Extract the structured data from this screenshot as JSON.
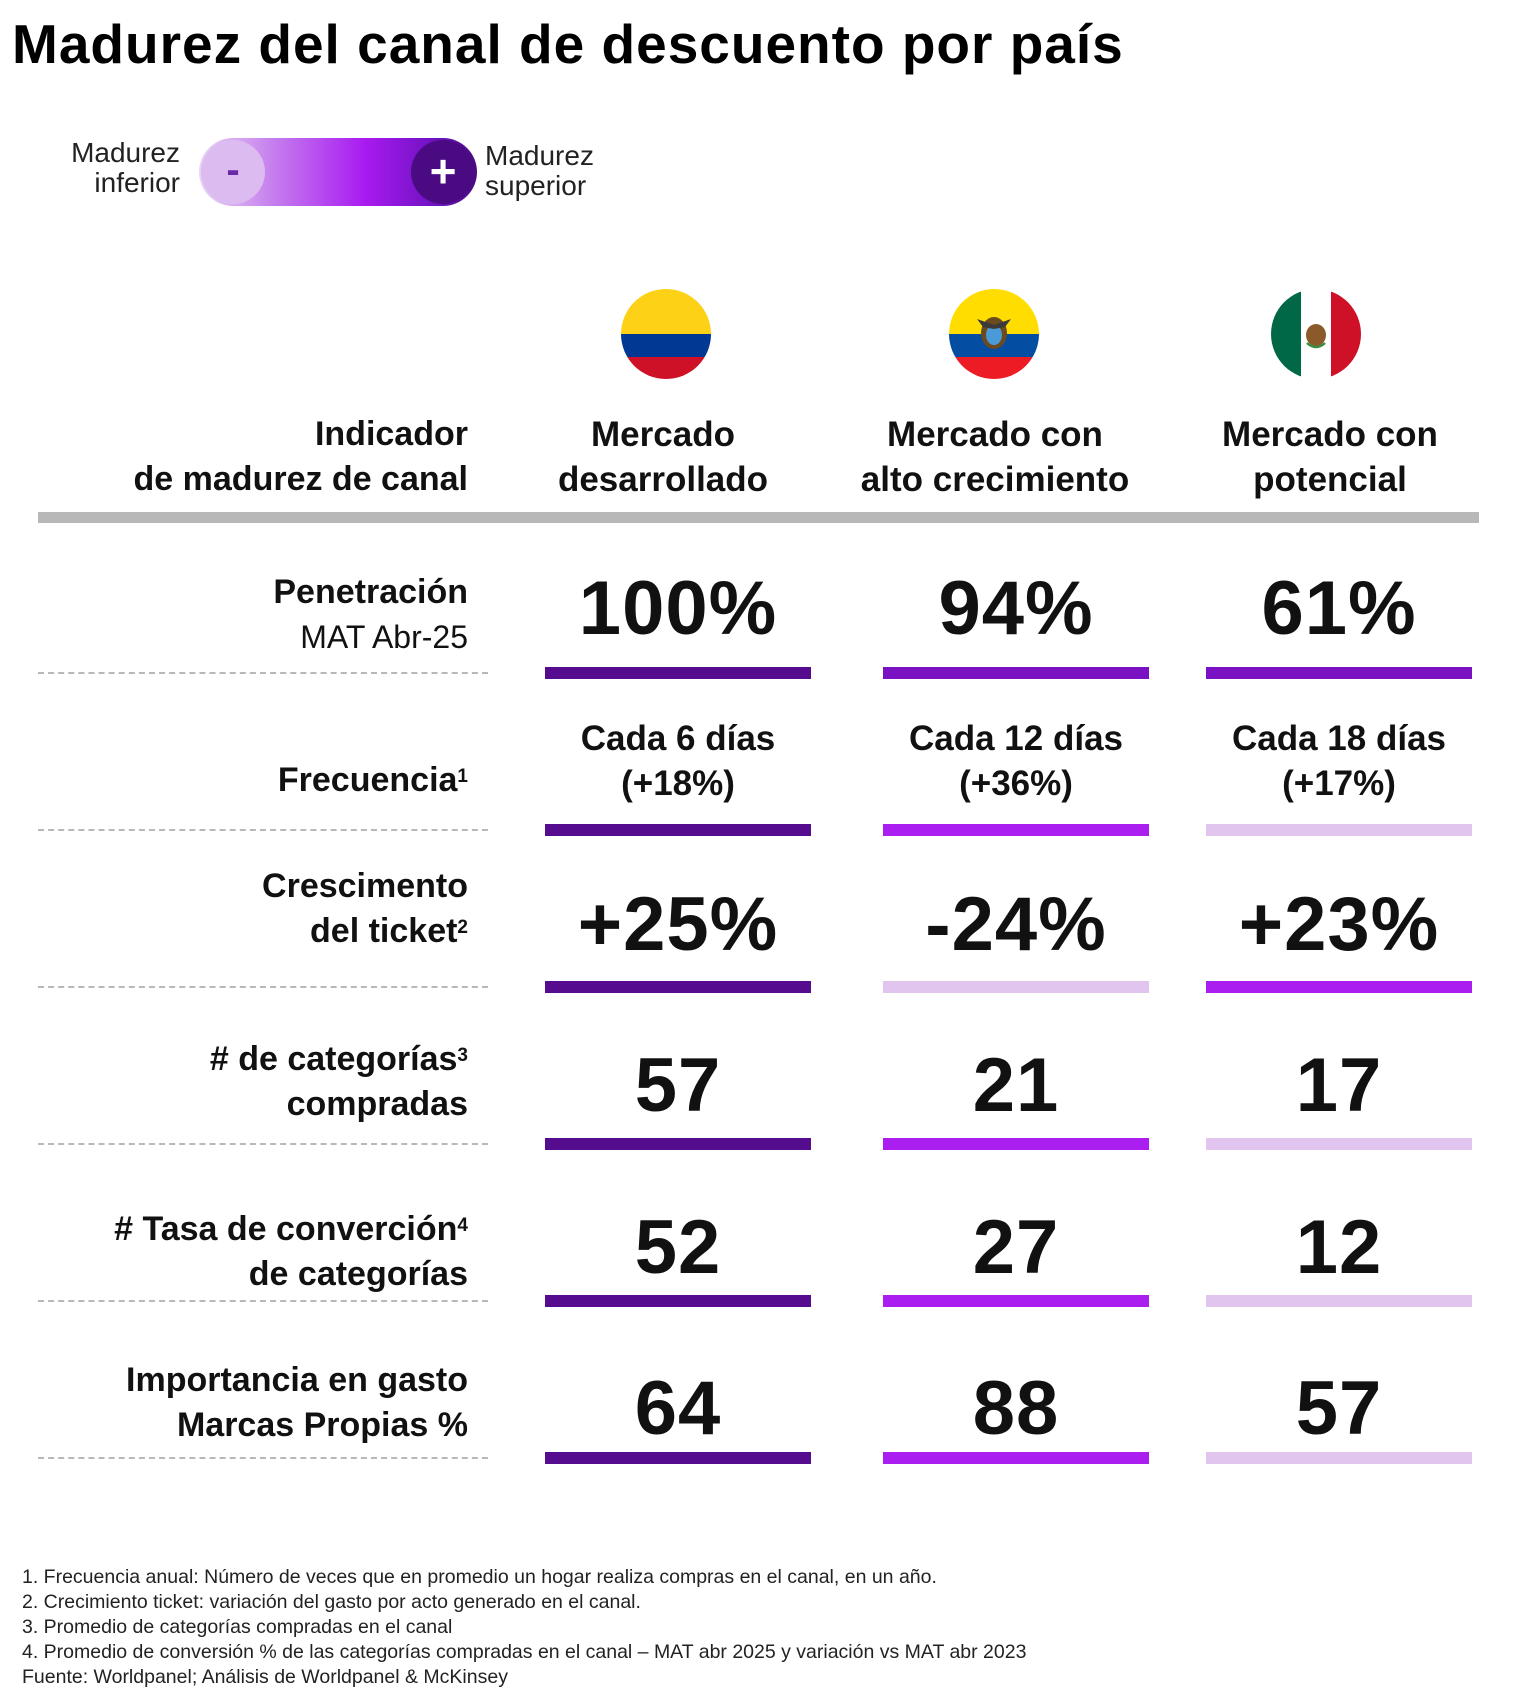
{
  "title": "Madurez del canal de descuento por país",
  "legend": {
    "low_line1": "Madurez",
    "low_line2": "inferior",
    "high_line1": "Madurez",
    "high_line2": "superior",
    "minus_symbol": "-",
    "plus_symbol": "+"
  },
  "colors": {
    "level_high": "#560c8e",
    "level_mid_high": "#7a12c4",
    "level_mid": "#aa1ff0",
    "level_low": "#e2c5ee",
    "header_rule": "#b8b8b8"
  },
  "columns": [
    {
      "line1": "Mercado",
      "line2": "desarrollado",
      "flag": "colombia-flag-icon"
    },
    {
      "line1": "Mercado con",
      "line2": "alto crecimiento",
      "flag": "ecuador-flag-icon"
    },
    {
      "line1": "Mercado con",
      "line2": "potencial",
      "flag": "mexico-flag-icon"
    }
  ],
  "header": {
    "line1": "Indicador",
    "line2": "de madurez de canal"
  },
  "rows": {
    "penetracion": {
      "label_line1": "Penetración",
      "label_sub": "MAT Abr-25",
      "values": [
        "100%",
        "94%",
        "61%"
      ],
      "levels": [
        "level_high",
        "level_mid_high",
        "level_mid_high"
      ]
    },
    "frecuencia": {
      "label_line1": "Frecuencia",
      "label_sup": "1",
      "values_line1": [
        "Cada 6 días",
        "Cada 12 días",
        "Cada 18 días"
      ],
      "values_line2": [
        "(+18%)",
        "(+36%)",
        "(+17%)"
      ],
      "levels": [
        "level_high",
        "level_mid",
        "level_low"
      ]
    },
    "ticket": {
      "label_line1": "Crescimento",
      "label_line2": "del ticket",
      "label_sup": "2",
      "values": [
        "+25%",
        "-24%",
        "+23%"
      ],
      "levels": [
        "level_high",
        "level_low",
        "level_mid"
      ]
    },
    "categorias": {
      "label_line1": "# de categorías",
      "label_sup": "3",
      "label_line2": "compradas",
      "values": [
        "57",
        "21",
        "17"
      ],
      "levels": [
        "level_high",
        "level_mid",
        "level_low"
      ]
    },
    "conversion": {
      "label_line1": "# Tasa de converción",
      "label_sup": "4",
      "label_line2": "de categorías",
      "values": [
        "52",
        "27",
        "12"
      ],
      "levels": [
        "level_high",
        "level_mid",
        "level_low"
      ]
    },
    "marcas": {
      "label_line1": "Importancia en gasto",
      "label_line2": "Marcas Propias %",
      "values": [
        "64",
        "88",
        "57"
      ],
      "levels": [
        "level_high",
        "level_mid",
        "level_low"
      ]
    }
  },
  "footnotes": [
    "1. Frecuencia anual: Número de veces que en promedio un hogar realiza compras en el canal, en un año.",
    "2. Crecimiento ticket: variación del gasto por acto generado en el canal.",
    "3. Promedio de categorías compradas en el canal",
    "4. Promedio de conversión % de las categorías compradas en el canal  – MAT abr 2025 y variación vs MAT abr 2023",
    "Fuente: Worldpanel; Análisis de Worldpanel & McKinsey"
  ]
}
